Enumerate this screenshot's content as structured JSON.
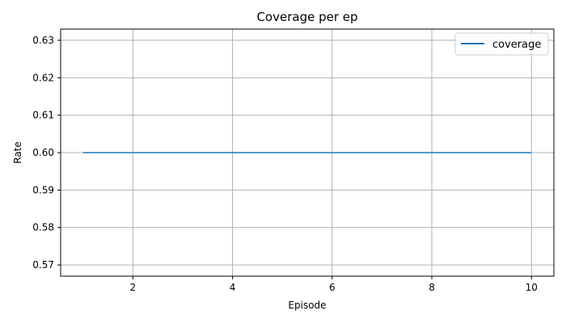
{
  "chart_data": {
    "type": "line",
    "title": "Coverage per ep",
    "xlabel": "Episode",
    "ylabel": "Rate",
    "xlim": [
      0.55,
      10.45
    ],
    "ylim": [
      0.567,
      0.633
    ],
    "xticks": [
      2,
      4,
      6,
      8,
      10
    ],
    "yticks": [
      0.57,
      0.58,
      0.59,
      0.6,
      0.61,
      0.62,
      0.63
    ],
    "ytick_labels": [
      "0.57",
      "0.58",
      "0.59",
      "0.60",
      "0.61",
      "0.62",
      "0.63"
    ],
    "grid": true,
    "legend_position": "top-right",
    "series": [
      {
        "name": "coverage",
        "color": "#1f77b4",
        "x": [
          1,
          2,
          3,
          4,
          5,
          6,
          7,
          8,
          9,
          10
        ],
        "y": [
          0.6,
          0.6,
          0.6,
          0.6,
          0.6,
          0.6,
          0.6,
          0.6,
          0.6,
          0.6
        ]
      }
    ]
  }
}
